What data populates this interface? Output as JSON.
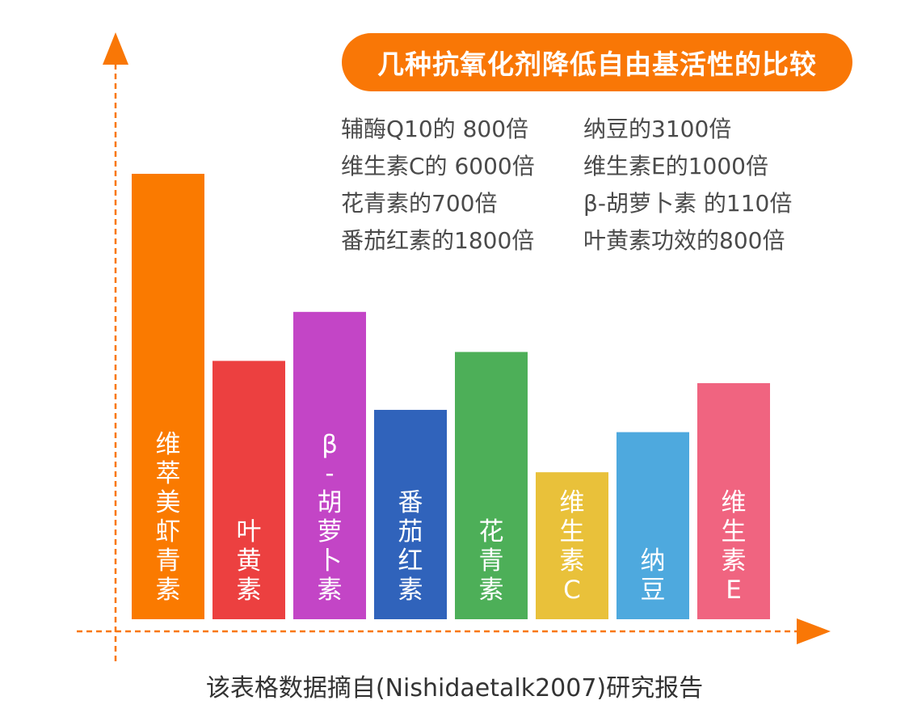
{
  "chart_data": {
    "type": "bar",
    "title": "几种抗氧化剂降低自由基活性的比较",
    "categories": [
      "维萃美虾青素",
      "叶黄素",
      "β-胡萝卜素",
      "番茄红素",
      "花青素",
      "维生素C",
      "纳豆",
      "维生素E"
    ],
    "bar_label_lines": [
      [
        "维",
        "萃",
        "美",
        "虾",
        "青",
        "素"
      ],
      [
        "叶",
        "黄",
        "素"
      ],
      [
        "β",
        "-",
        "胡",
        "萝",
        "卜",
        "素"
      ],
      [
        "番",
        "茄",
        "红",
        "素"
      ],
      [
        "花",
        "青",
        "素"
      ],
      [
        "维",
        "生",
        "素",
        "C"
      ],
      [
        "纳",
        "豆"
      ],
      [
        "维",
        "生",
        "素",
        "E"
      ]
    ],
    "values": [
      100,
      58,
      69,
      47,
      60,
      33,
      42,
      53
    ],
    "colors": [
      "#fa7a00",
      "#ec4040",
      "#c345c6",
      "#3063bb",
      "#4daf58",
      "#e9c13a",
      "#4ea9de",
      "#f06480"
    ],
    "ylim": [
      0,
      100
    ],
    "grid": false,
    "axis_color": "#f97706",
    "annotations": [
      "辅酶Q10的 800倍",
      "纳豆的3100倍",
      "维生素C的 6000倍",
      "维生素E的1000倍",
      "花青素的700倍",
      "β-胡萝卜素 的110倍",
      "番茄红素的1800倍",
      "叶黄素功效的800倍"
    ],
    "source_note": "该表格数据摘自(Nishidaetalk2007)研究报告"
  }
}
